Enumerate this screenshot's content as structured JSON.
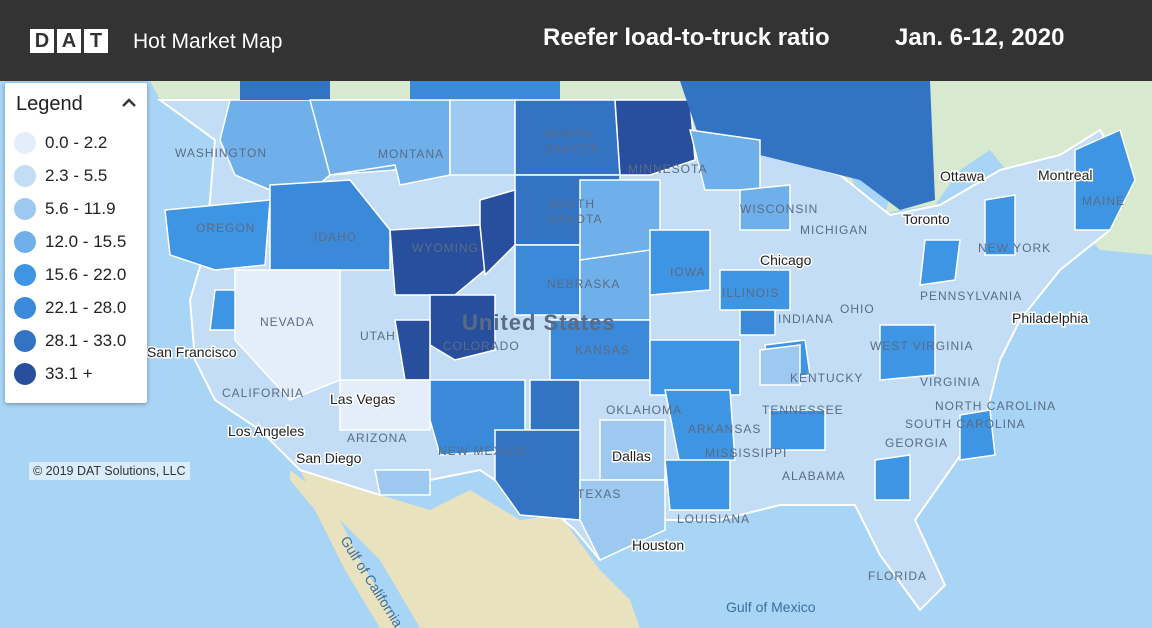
{
  "header": {
    "logo_letters": [
      "D",
      "A",
      "T"
    ],
    "app_title": "Hot Market Map",
    "map_title": "Reefer load-to-truck ratio",
    "dates": "Jan. 6-12, 2020"
  },
  "legend": {
    "title": "Legend",
    "toggle_icon": "chevron-up-icon",
    "items": [
      {
        "label": "0.0 - 2.2",
        "color": "#e3eefa"
      },
      {
        "label": "2.3 - 5.5",
        "color": "#c3ddf6"
      },
      {
        "label": "5.6 - 11.9",
        "color": "#9dc8f0"
      },
      {
        "label": "12.0 - 15.5",
        "color": "#6fb0eb"
      },
      {
        "label": "15.6 - 22.0",
        "color": "#3d95e3"
      },
      {
        "label": "22.1 - 28.0",
        "color": "#3b8ad9"
      },
      {
        "label": "28.1 - 33.0",
        "color": "#3273c4"
      },
      {
        "label": "33.1 +",
        "color": "#284f9e"
      }
    ]
  },
  "copyright": "© 2019 DAT Solutions, LLC",
  "map_labels": {
    "country": "United States",
    "states": [
      "WASHINGTON",
      "MONTANA",
      "NORTH DAKOTA",
      "MINNESOTA",
      "SOUTH DAKOTA",
      "OREGON",
      "IDAHO",
      "WYOMING",
      "WISCONSIN",
      "MICHIGAN",
      "IOWA",
      "NEBRASKA",
      "NEVADA",
      "UTAH",
      "COLORADO",
      "KANSAS",
      "ILLINOIS",
      "INDIANA",
      "OHIO",
      "PENNSYLVANIA",
      "NEW YORK",
      "MAINE",
      "CALIFORNIA",
      "ARIZONA",
      "NEW MEXICO",
      "OKLAHOMA",
      "ARKANSAS",
      "TENNESSEE",
      "KENTUCKY",
      "WEST VIRGINIA",
      "VIRGINIA",
      "NORTH CAROLINA",
      "SOUTH CAROLINA",
      "GEORGIA",
      "ALABAMA",
      "MISSISSIPPI",
      "LOUISIANA",
      "TEXAS",
      "FLORIDA"
    ],
    "cities": [
      "San Francisco",
      "Las Vegas",
      "Los Angeles",
      "San Diego",
      "Chicago",
      "Toronto",
      "Ottawa",
      "Montreal",
      "Philadelphia",
      "Dallas",
      "Houston"
    ],
    "water": [
      "Gulf of California",
      "Gulf of Mexico"
    ]
  }
}
